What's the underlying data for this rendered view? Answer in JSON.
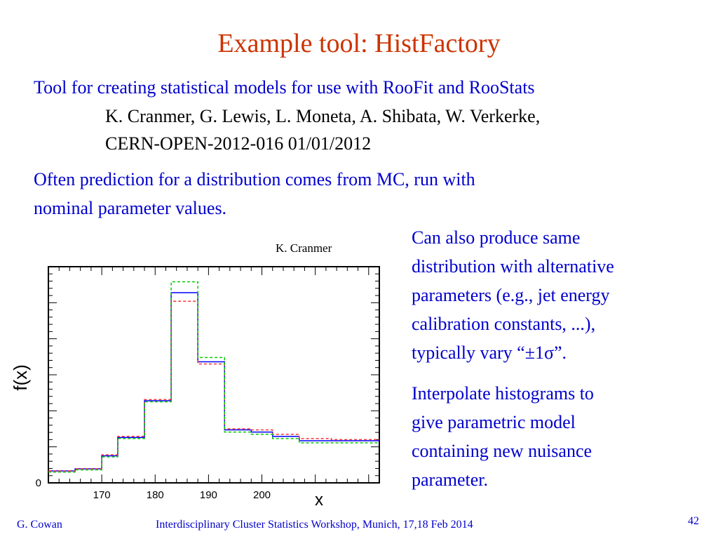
{
  "title": "Example tool:  HistFactory",
  "intro": {
    "line1": "Tool for creating statistical models for use with RooFit and RooStats",
    "authors": "K. Cranmer, G. Lewis, L. Moneta, A. Shibata, W. Verkerke,",
    "reference": "CERN-OPEN-2012-016 01/01/2012"
  },
  "para2": {
    "line1": "Often prediction for a distribution comes from MC, run with",
    "line2": "nominal parameter values."
  },
  "right": {
    "para1": [
      "Can also produce same",
      "distribution with alternative",
      "parameters (e.g., jet energy",
      "calibration constants, ...),",
      "typically vary “±1σ”."
    ],
    "para2": [
      "Interpolate histograms to",
      "give parametric model",
      "containing new nuisance",
      "parameter."
    ]
  },
  "chart_credit": "K. Cranmer",
  "footer": {
    "author": "G. Cowan",
    "event": "Interdisciplinary Cluster Statistics Workshop, Munich, 17,18 Feb 2014",
    "page": "42"
  },
  "chart_data": {
    "type": "histogram",
    "xlabel": "x",
    "ylabel": "f(x)",
    "xlim": [
      160,
      222
    ],
    "ylim": [
      0,
      1
    ],
    "x_ticks": [
      "170",
      "180",
      "190",
      "200"
    ],
    "y_ticks": [
      "0"
    ],
    "bin_edges": [
      160,
      165,
      173,
      183,
      193,
      202,
      213,
      222
    ],
    "bin_edges_fine": [
      160,
      165,
      170,
      173,
      178,
      183,
      188,
      193,
      198,
      202,
      207,
      213,
      218,
      222
    ],
    "series": [
      {
        "color": "#0000ff",
        "style": "solid",
        "values": [
          0.055,
          0.065,
          0.125,
          0.21,
          0.38,
          0.88,
          0.56,
          0.245,
          0.235,
          0.215,
          0.195,
          0.195,
          0.195
        ]
      },
      {
        "color": "#ff3333",
        "style": "dashed",
        "values": [
          0.055,
          0.065,
          0.13,
          0.215,
          0.385,
          0.84,
          0.55,
          0.25,
          0.245,
          0.225,
          0.205,
          0.2,
          0.2
        ]
      },
      {
        "color": "#00cc00",
        "style": "dashed",
        "values": [
          0.05,
          0.06,
          0.12,
          0.205,
          0.375,
          0.93,
          0.58,
          0.235,
          0.225,
          0.205,
          0.185,
          0.185,
          0.185
        ]
      }
    ]
  }
}
